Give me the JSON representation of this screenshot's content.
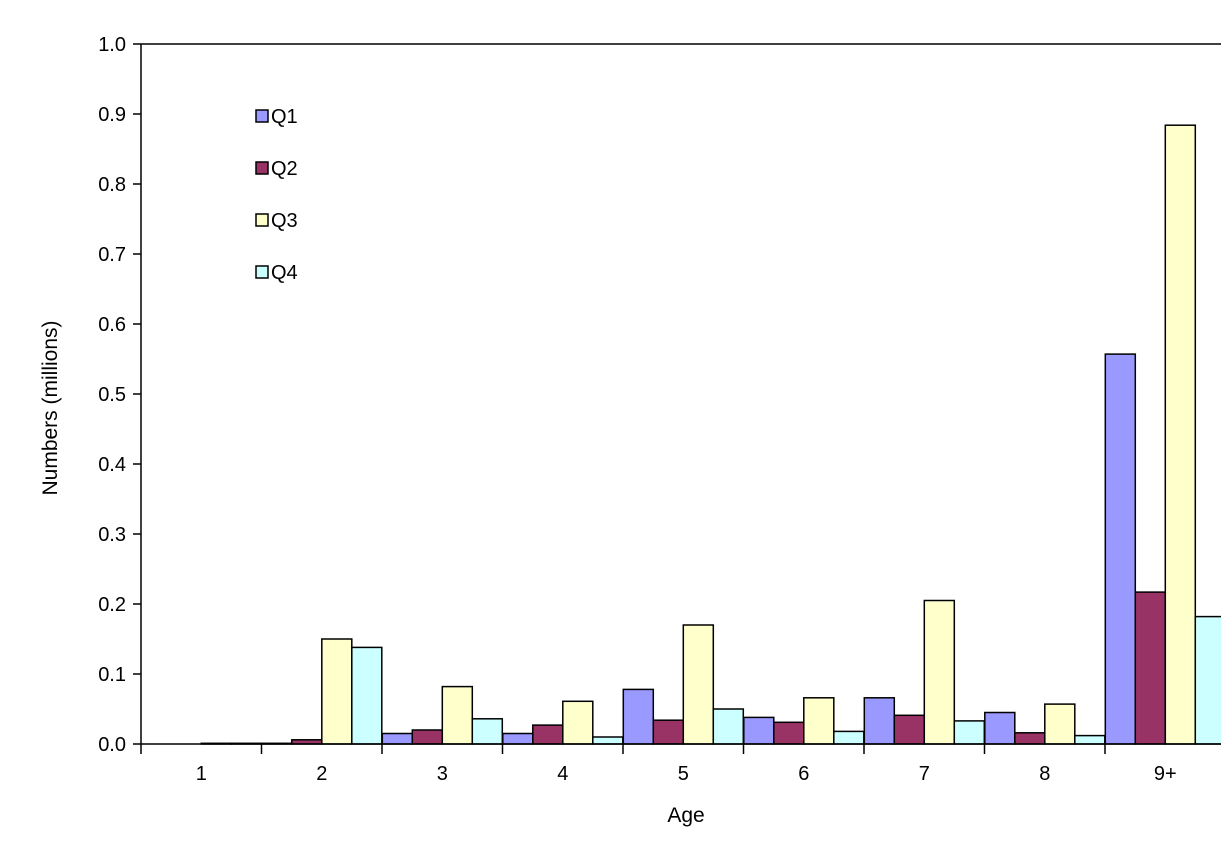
{
  "chart_data": {
    "type": "bar",
    "title": "",
    "xlabel": "Age",
    "ylabel": "Numbers (millions)",
    "categories": [
      "1",
      "2",
      "3",
      "4",
      "5",
      "6",
      "7",
      "8",
      "9+"
    ],
    "ylim": [
      0,
      1.0
    ],
    "yticks": [
      "0.0",
      "0.1",
      "0.2",
      "0.3",
      "0.4",
      "0.5",
      "0.6",
      "0.7",
      "0.8",
      "0.9",
      "1.0"
    ],
    "grid": false,
    "legend_position": "top-left",
    "series": [
      {
        "name": "Q1",
        "color": "#9999ff",
        "values": [
          0.0,
          0.001,
          0.015,
          0.015,
          0.078,
          0.038,
          0.066,
          0.045,
          0.557
        ]
      },
      {
        "name": "Q2",
        "color": "#993366",
        "values": [
          0.0,
          0.006,
          0.02,
          0.027,
          0.034,
          0.031,
          0.041,
          0.016,
          0.217
        ]
      },
      {
        "name": "Q3",
        "color": "#ffffcc",
        "values": [
          0.001,
          0.15,
          0.082,
          0.061,
          0.17,
          0.066,
          0.205,
          0.057,
          0.884
        ]
      },
      {
        "name": "Q4",
        "color": "#ccffff",
        "values": [
          0.001,
          0.138,
          0.036,
          0.01,
          0.05,
          0.018,
          0.033,
          0.012,
          0.182
        ]
      }
    ]
  }
}
